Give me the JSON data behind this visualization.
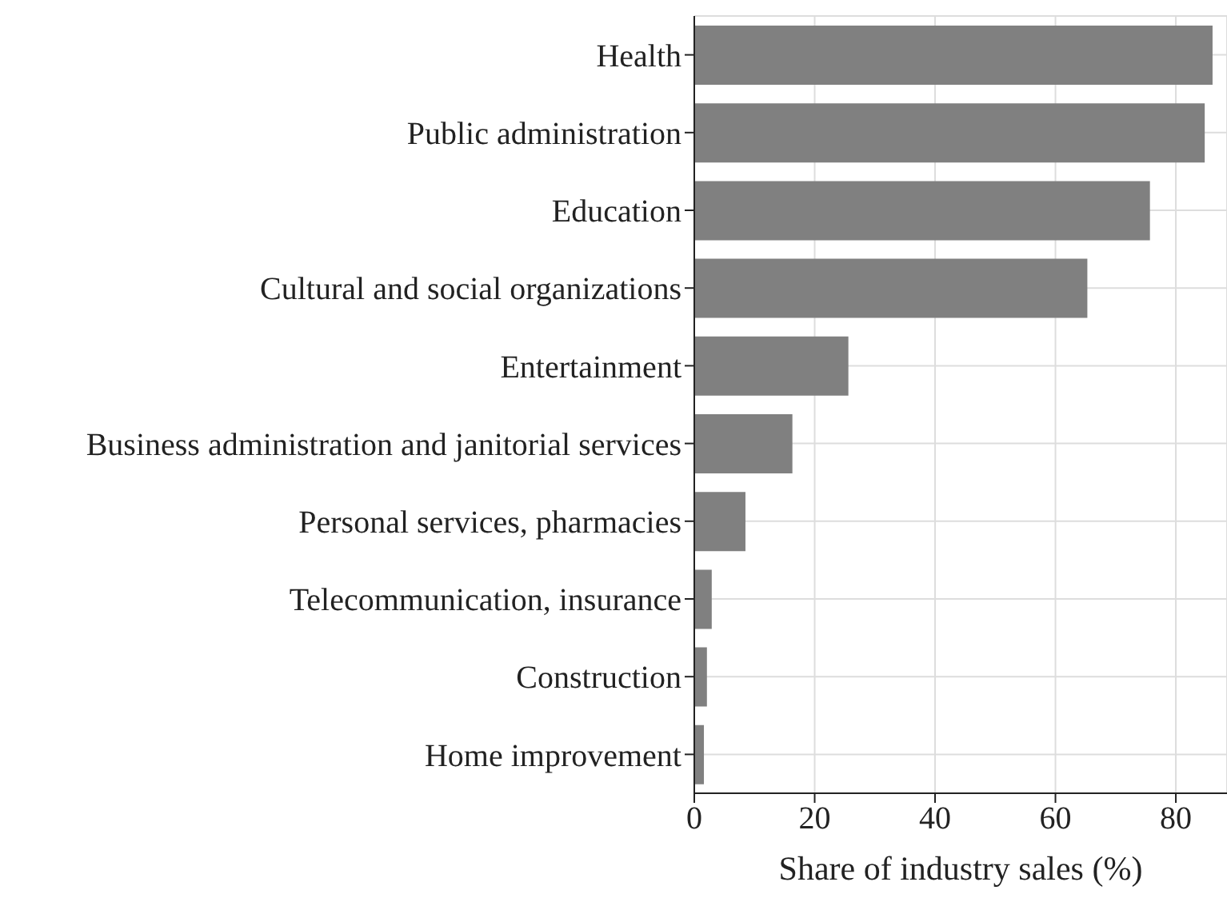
{
  "chart_data": {
    "type": "bar",
    "orientation": "horizontal",
    "categories": [
      "Health",
      "Public administration",
      "Education",
      "Cultural and social organizations",
      "Entertainment",
      "Business administration and janitorial services",
      "Personal services, pharmacies",
      "Telecommunication, insurance",
      "Construction",
      "Home improvement"
    ],
    "values": [
      86.1,
      84.8,
      75.7,
      65.3,
      25.6,
      16.3,
      8.5,
      2.9,
      2.1,
      1.6
    ],
    "color": "#808080",
    "xlabel": "Share of industry sales (%)",
    "xlim": [
      0,
      88.5
    ],
    "xticks": [
      0,
      20,
      40,
      60,
      80
    ],
    "grid": true
  }
}
